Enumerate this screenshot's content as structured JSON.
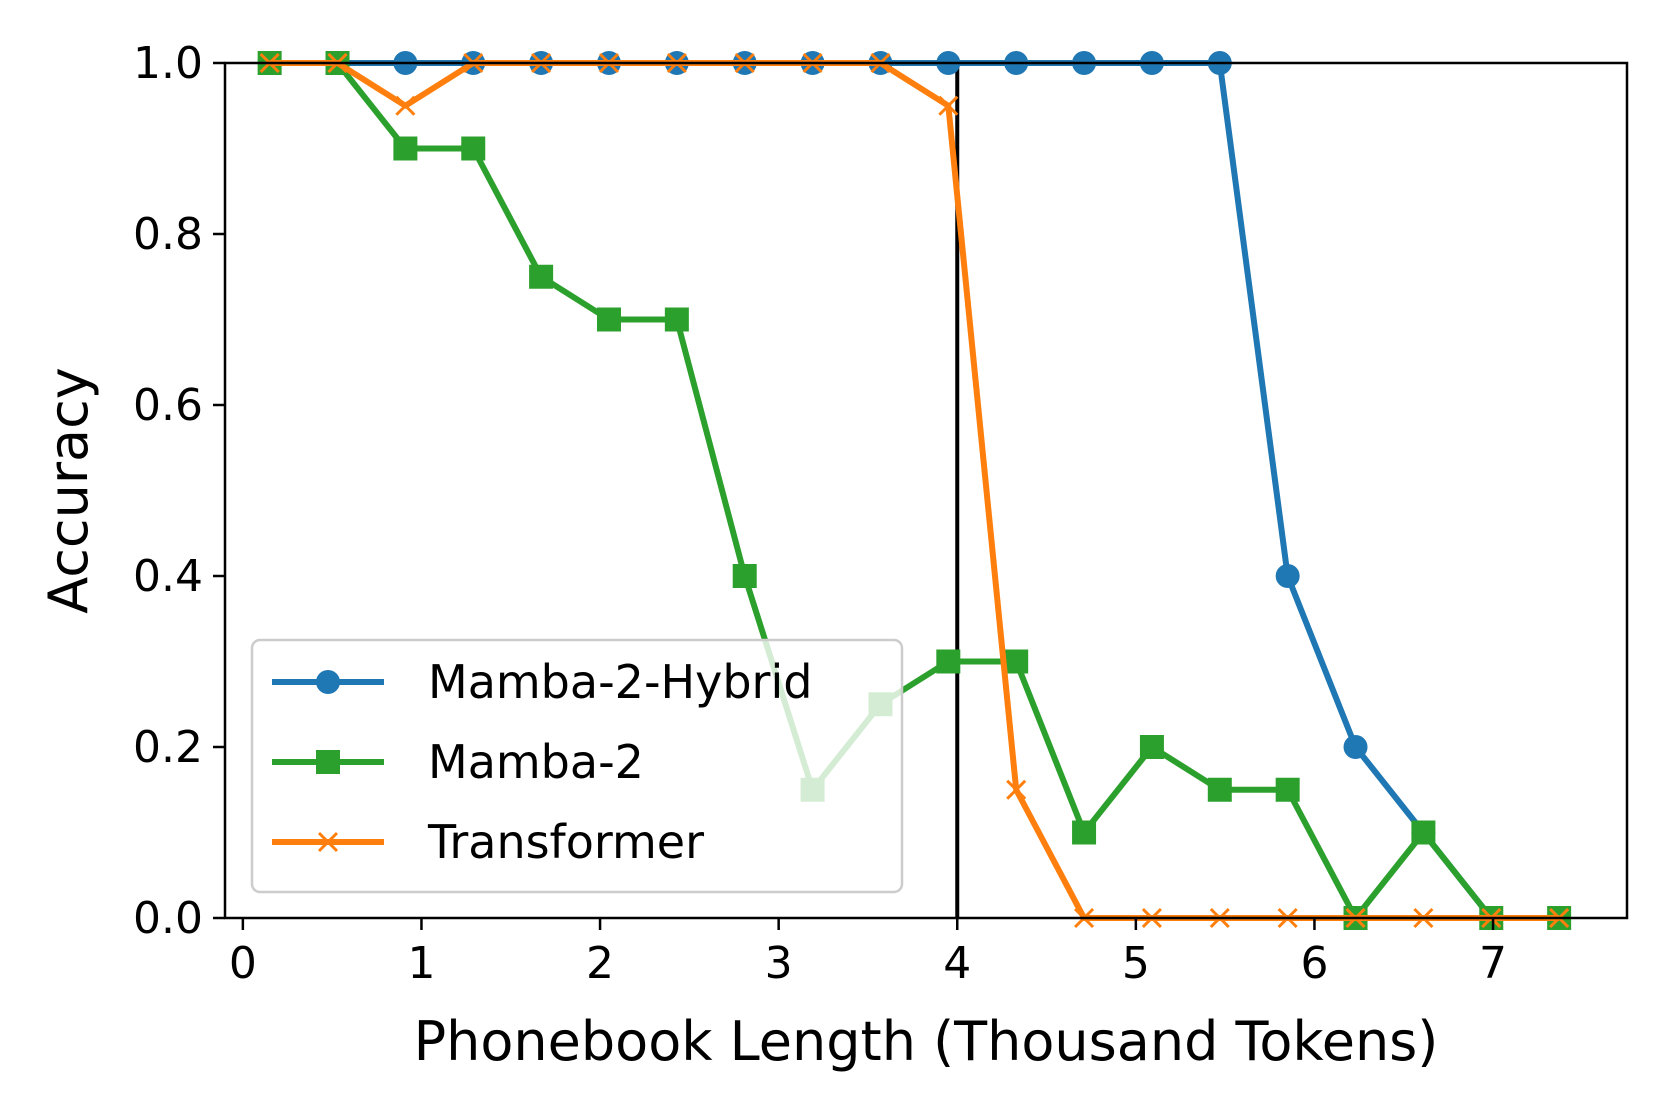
{
  "chart_data": {
    "type": "line",
    "title": "",
    "xlabel": "Phonebook Length (Thousand Tokens)",
    "ylabel": "Accuracy",
    "xlim": [
      -0.1,
      7.75
    ],
    "ylim": [
      0.0,
      1.0
    ],
    "xticks": [
      0,
      1,
      2,
      3,
      4,
      5,
      6,
      7
    ],
    "yticks": [
      0.0,
      0.2,
      0.4,
      0.6,
      0.8,
      1.0
    ],
    "xtick_labels": [
      "0",
      "1",
      "2",
      "3",
      "4",
      "5",
      "6",
      "7"
    ],
    "ytick_labels": [
      "0.0",
      "0.2",
      "0.4",
      "0.6",
      "0.8",
      "1.0"
    ],
    "grid": false,
    "legend_position": "lower-left",
    "vline": {
      "x": 4.0,
      "color": "#000000"
    },
    "x": [
      0.15,
      0.53,
      0.91,
      1.29,
      1.67,
      2.05,
      2.43,
      2.81,
      3.19,
      3.57,
      3.95,
      4.33,
      4.71,
      5.09,
      5.47,
      5.85,
      6.23,
      6.61,
      6.99,
      7.37
    ],
    "series": [
      {
        "name": "Mamba-2-Hybrid",
        "color": "#1f77b4",
        "marker": "circle",
        "values": [
          1.0,
          1.0,
          1.0,
          1.0,
          1.0,
          1.0,
          1.0,
          1.0,
          1.0,
          1.0,
          1.0,
          1.0,
          1.0,
          1.0,
          1.0,
          0.4,
          0.2,
          0.1,
          0.0,
          0.0
        ]
      },
      {
        "name": "Mamba-2",
        "color": "#2ca02c",
        "marker": "square",
        "values": [
          1.0,
          1.0,
          0.9,
          0.9,
          0.75,
          0.7,
          0.7,
          0.4,
          0.15,
          0.25,
          0.3,
          0.3,
          0.1,
          0.2,
          0.15,
          0.15,
          0.0,
          0.1,
          0.0,
          0.0
        ]
      },
      {
        "name": "Transformer",
        "color": "#ff7f0e",
        "marker": "x",
        "values": [
          1.0,
          1.0,
          0.95,
          1.0,
          1.0,
          1.0,
          1.0,
          1.0,
          1.0,
          1.0,
          0.95,
          0.15,
          0.0,
          0.0,
          0.0,
          0.0,
          0.0,
          0.0,
          0.0,
          0.0
        ]
      }
    ]
  }
}
